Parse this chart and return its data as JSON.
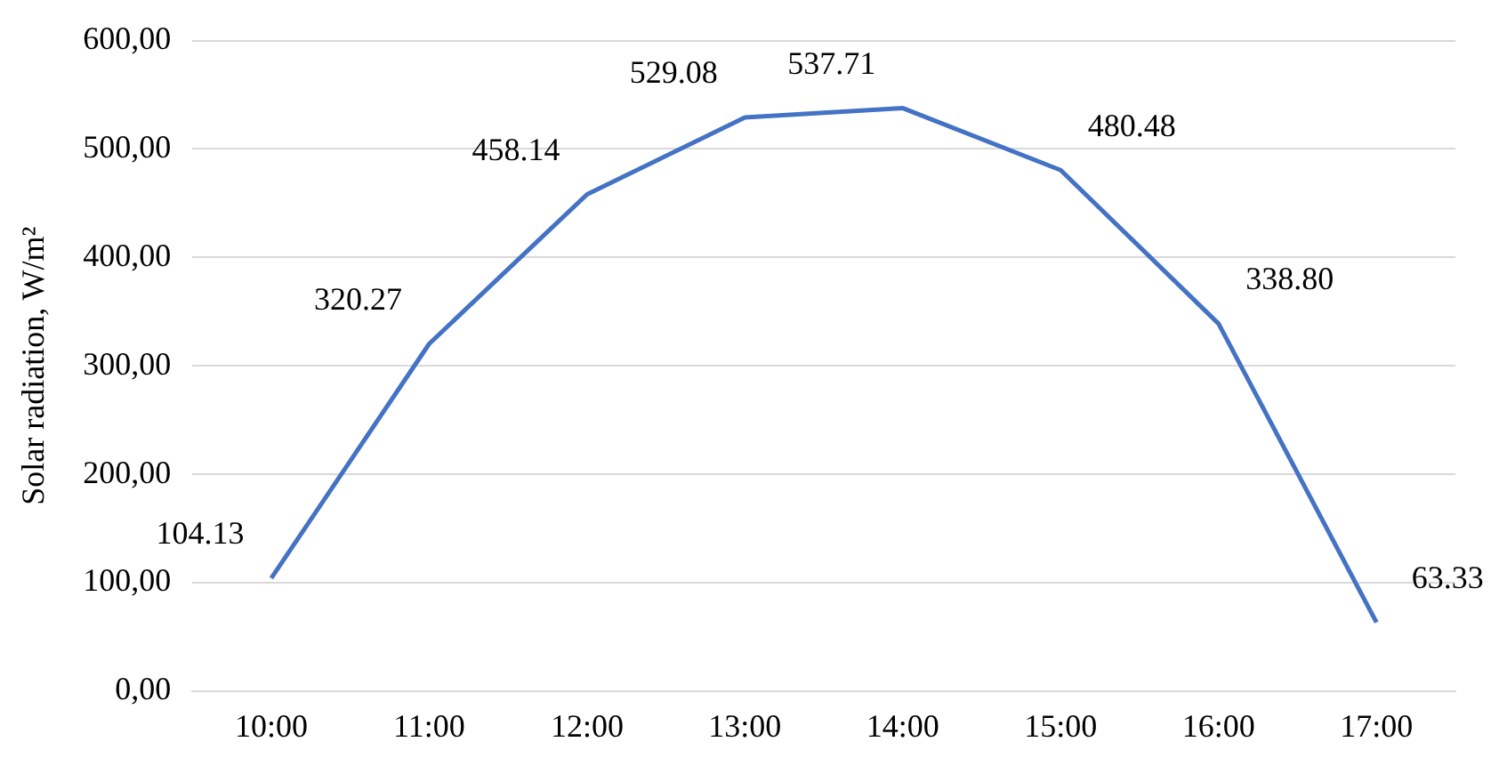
{
  "chart_data": {
    "type": "line",
    "ylabel": "Solar radiation, W/m²",
    "categories": [
      "10:00",
      "11:00",
      "12:00",
      "13:00",
      "14:00",
      "15:00",
      "16:00",
      "17:00"
    ],
    "series": [
      {
        "color": "#4472c4",
        "values": [
          104.13,
          320.27,
          458.14,
          529.08,
          537.71,
          480.48,
          338.8,
          63.33
        ],
        "value_labels": [
          "104.13",
          "320.27",
          "458.14",
          "529.08",
          "537.71",
          "480.48",
          "338.80",
          "63.33"
        ]
      }
    ],
    "ylim": [
      0,
      600
    ],
    "yticks": [
      {
        "value": 0,
        "label": "0,00"
      },
      {
        "value": 100,
        "label": "100,00"
      },
      {
        "value": 200,
        "label": "200,00"
      },
      {
        "value": 300,
        "label": "300,00"
      },
      {
        "value": 400,
        "label": "400,00"
      },
      {
        "value": 500,
        "label": "500,00"
      },
      {
        "value": 600,
        "label": "600,00"
      }
    ],
    "grid": "y",
    "legend": false,
    "marker": "none",
    "line_style": "solid"
  }
}
